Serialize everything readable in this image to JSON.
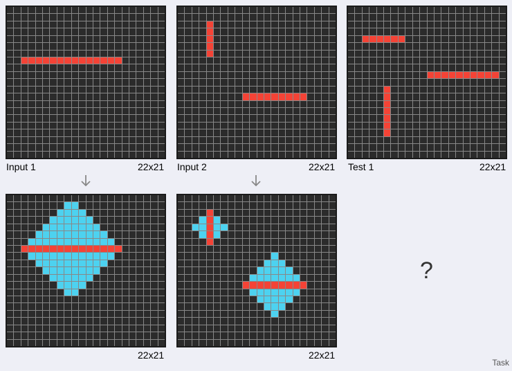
{
  "colors": {
    "background": "#2b2b2b",
    "grid_line": "#888888",
    "red": "#f44336",
    "cyan": "#4dd2f0"
  },
  "panels": [
    {
      "id": "input-1",
      "title": "Input 1",
      "size": "22x21",
      "cols": 22,
      "rows": 21,
      "red": [
        [
          7,
          2
        ],
        [
          7,
          3
        ],
        [
          7,
          4
        ],
        [
          7,
          5
        ],
        [
          7,
          6
        ],
        [
          7,
          7
        ],
        [
          7,
          8
        ],
        [
          7,
          9
        ],
        [
          7,
          10
        ],
        [
          7,
          11
        ],
        [
          7,
          12
        ],
        [
          7,
          13
        ],
        [
          7,
          14
        ],
        [
          7,
          15
        ]
      ],
      "cyan": []
    },
    {
      "id": "input-2",
      "title": "Input 2",
      "size": "22x21",
      "cols": 22,
      "rows": 21,
      "red": [
        [
          2,
          4
        ],
        [
          3,
          4
        ],
        [
          4,
          4
        ],
        [
          5,
          4
        ],
        [
          6,
          4
        ],
        [
          12,
          9
        ],
        [
          12,
          10
        ],
        [
          12,
          11
        ],
        [
          12,
          12
        ],
        [
          12,
          13
        ],
        [
          12,
          14
        ],
        [
          12,
          15
        ],
        [
          12,
          16
        ],
        [
          12,
          17
        ]
      ],
      "cyan": []
    },
    {
      "id": "test-1",
      "title": "Test 1",
      "size": "22x21",
      "cols": 22,
      "rows": 21,
      "red": [
        [
          4,
          2
        ],
        [
          4,
          3
        ],
        [
          4,
          4
        ],
        [
          4,
          5
        ],
        [
          4,
          6
        ],
        [
          4,
          7
        ],
        [
          9,
          11
        ],
        [
          9,
          12
        ],
        [
          9,
          13
        ],
        [
          9,
          14
        ],
        [
          9,
          15
        ],
        [
          9,
          16
        ],
        [
          9,
          17
        ],
        [
          9,
          18
        ],
        [
          9,
          19
        ],
        [
          9,
          20
        ],
        [
          11,
          5
        ],
        [
          12,
          5
        ],
        [
          13,
          5
        ],
        [
          14,
          5
        ],
        [
          15,
          5
        ],
        [
          16,
          5
        ],
        [
          17,
          5
        ]
      ],
      "cyan": []
    },
    {
      "id": "output-1",
      "title": "",
      "size": "22x21",
      "cols": 22,
      "rows": 21,
      "red": [
        [
          7,
          2
        ],
        [
          7,
          3
        ],
        [
          7,
          4
        ],
        [
          7,
          5
        ],
        [
          7,
          6
        ],
        [
          7,
          7
        ],
        [
          7,
          8
        ],
        [
          7,
          9
        ],
        [
          7,
          10
        ],
        [
          7,
          11
        ],
        [
          7,
          12
        ],
        [
          7,
          13
        ],
        [
          7,
          14
        ],
        [
          7,
          15
        ]
      ],
      "cyan_diamonds": [
        {
          "row": 7,
          "center": 8.5,
          "half": 6.5
        }
      ]
    },
    {
      "id": "output-2",
      "title": "",
      "size": "22x21",
      "cols": 22,
      "rows": 21,
      "red": [
        [
          2,
          4
        ],
        [
          3,
          4
        ],
        [
          4,
          4
        ],
        [
          5,
          4
        ],
        [
          6,
          4
        ],
        [
          12,
          9
        ],
        [
          12,
          10
        ],
        [
          12,
          11
        ],
        [
          12,
          12
        ],
        [
          12,
          13
        ],
        [
          12,
          14
        ],
        [
          12,
          15
        ],
        [
          12,
          16
        ],
        [
          12,
          17
        ]
      ],
      "cyan_diamonds_v": [
        {
          "col": 4,
          "center": 4,
          "half": 2
        }
      ],
      "cyan_diamonds": [
        {
          "row": 12,
          "center": 13,
          "half": 4
        }
      ]
    }
  ],
  "question": "?",
  "footer": "Task"
}
